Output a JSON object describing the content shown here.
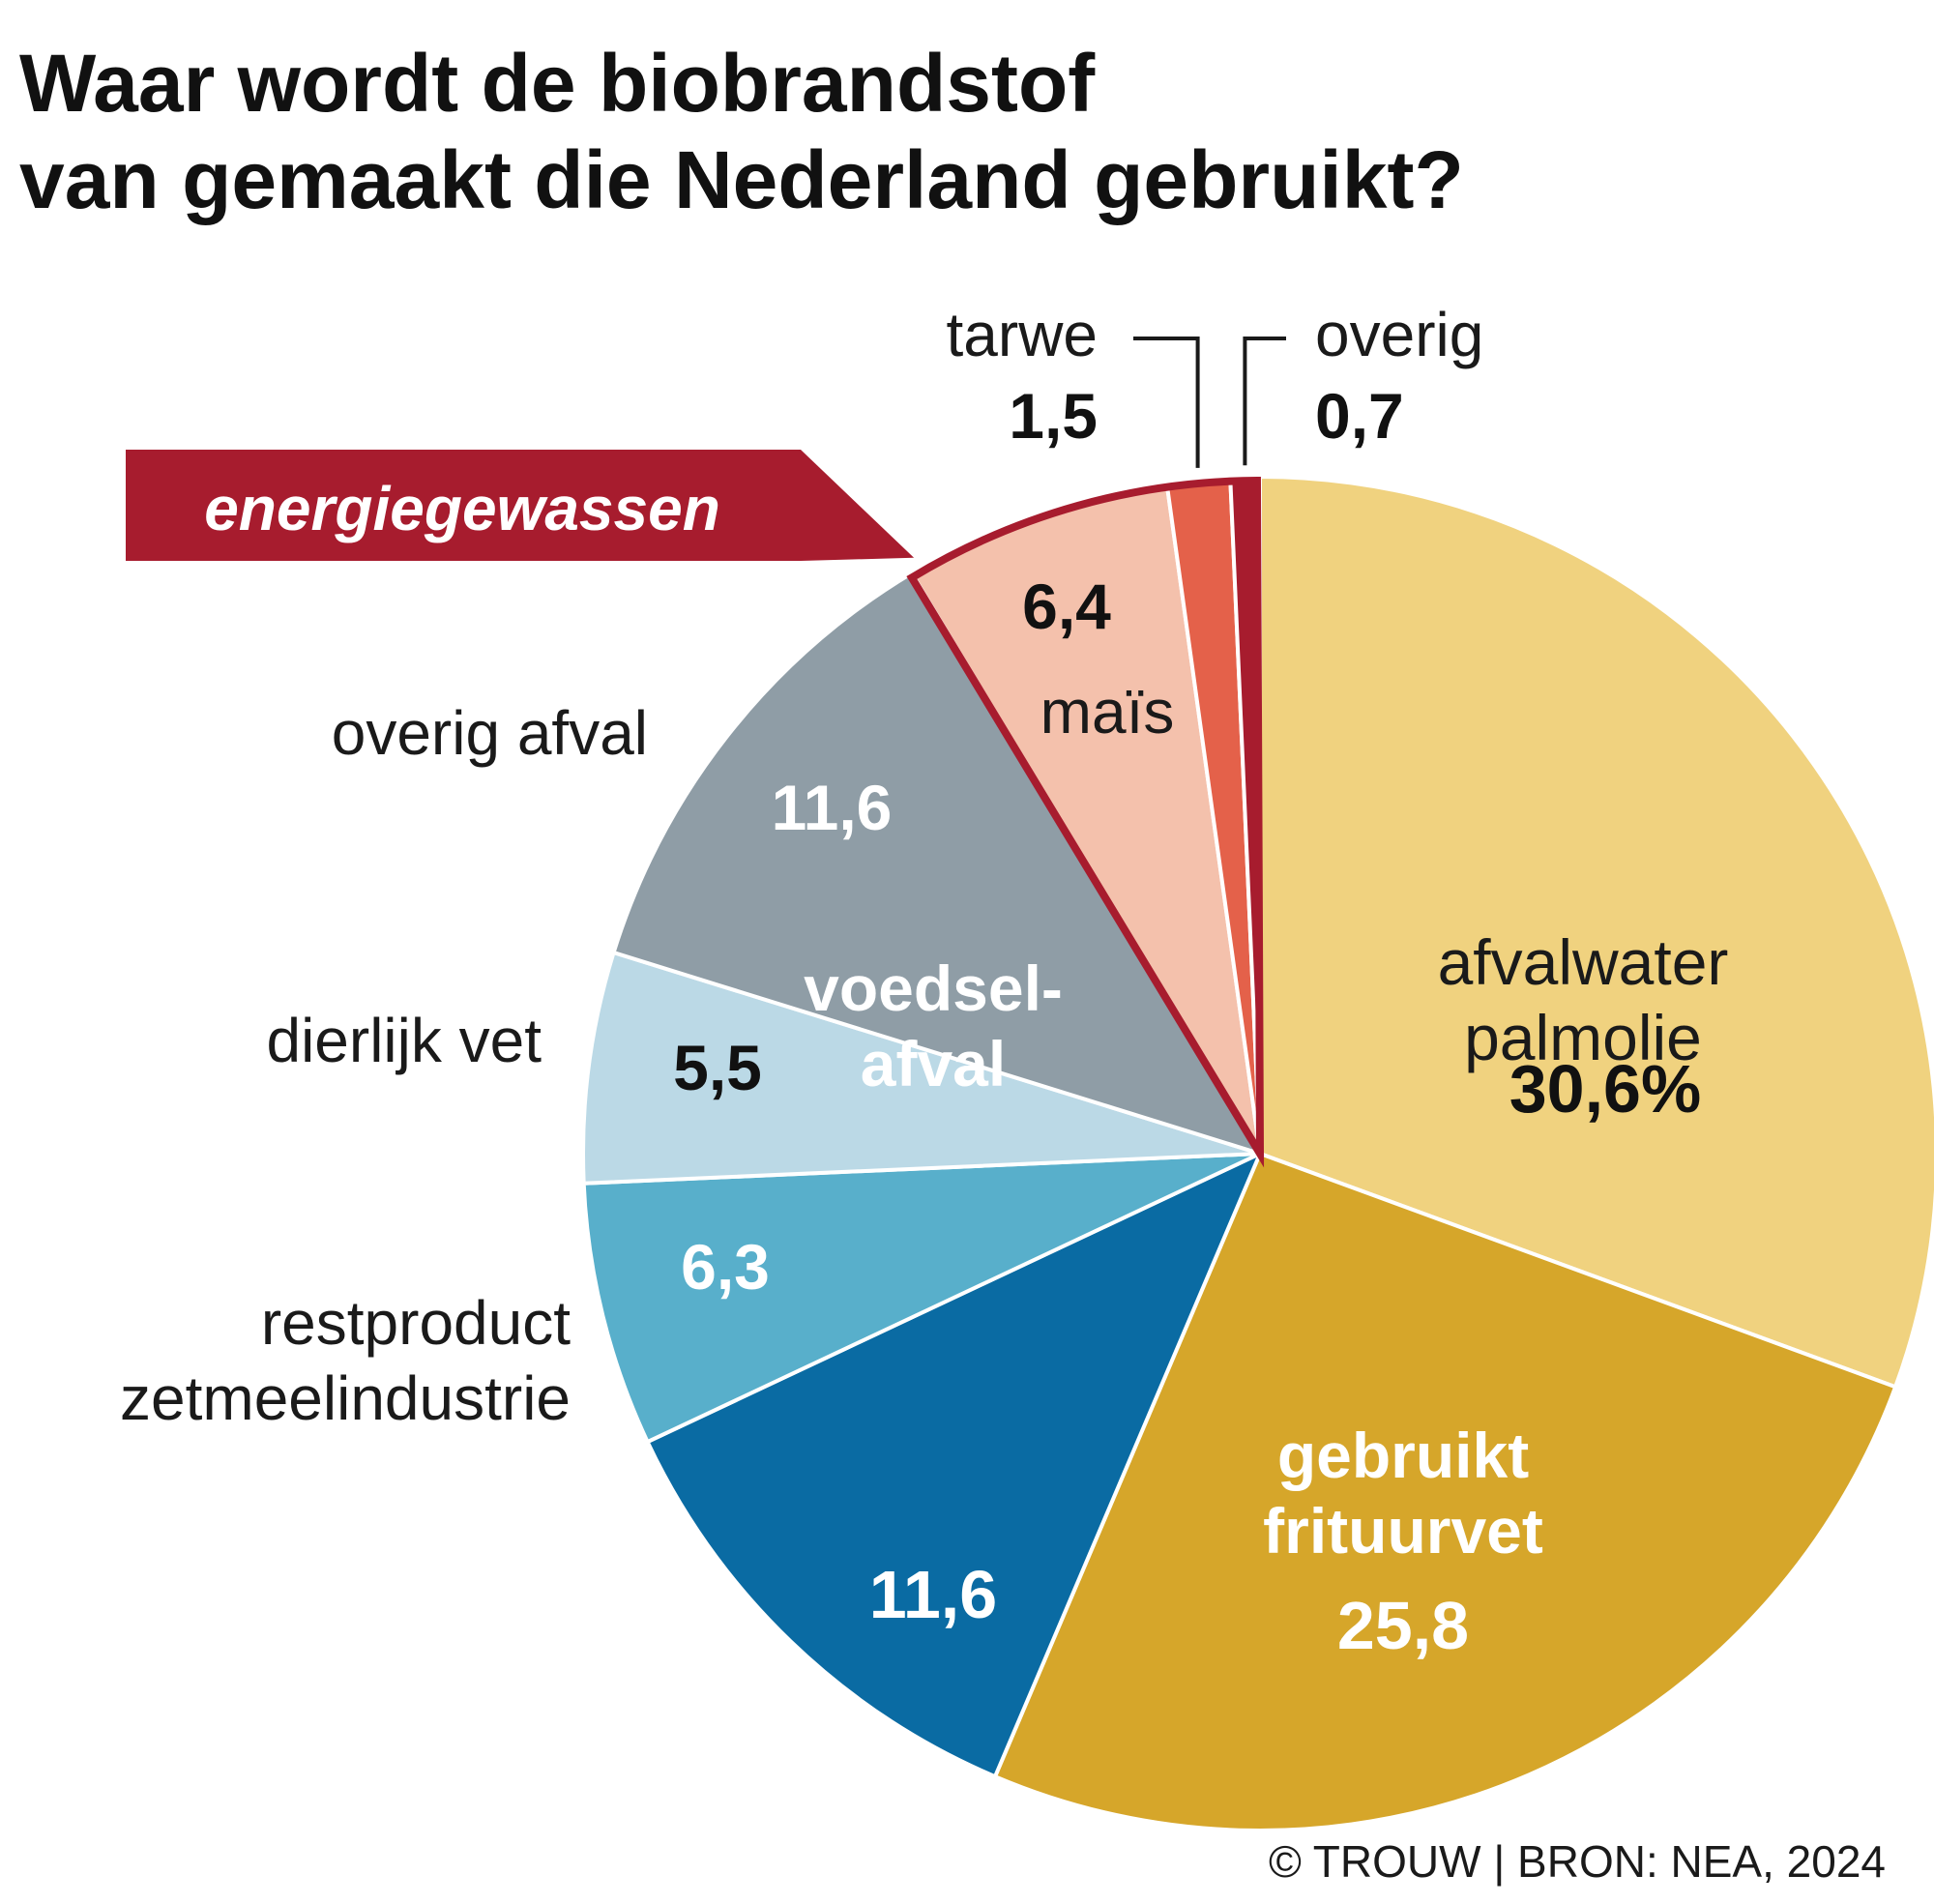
{
  "title": {
    "line1": "Waar wordt de biobrandstof",
    "line2": "van gemaakt die Nederland gebruikt?"
  },
  "credit": "© TROUW | BRON: NEA, 2024",
  "chart_data": {
    "type": "pie",
    "unit": "%",
    "slices": [
      {
        "label": "afvalwater palmolie",
        "label_lines": [
          "afvalwater",
          "palmolie"
        ],
        "value": 30.6,
        "display": "30,6%",
        "color": "#f0d27f"
      },
      {
        "label": "gebruikt frituurvet",
        "label_lines": [
          "gebruikt",
          "frituurvet"
        ],
        "value": 25.8,
        "display": "25,8",
        "color": "#d6a62a"
      },
      {
        "label": "voedsel-afval",
        "label_lines": [
          "voedsel-",
          "afval"
        ],
        "value": 11.6,
        "display": "11,6",
        "color": "#0a6ba3"
      },
      {
        "label": "restproduct zetmeelindustrie",
        "label_lines": [
          "restproduct",
          "zetmeelindustrie"
        ],
        "value": 6.3,
        "display": "6,3",
        "color": "#58afcb"
      },
      {
        "label": "dierlijk vet",
        "label_lines": [
          "dierlijk vet"
        ],
        "value": 5.5,
        "display": "5,5",
        "color": "#bbd9e6"
      },
      {
        "label": "overig afval",
        "label_lines": [
          "overig afval"
        ],
        "value": 11.6,
        "display": "11,6",
        "color": "#8f9da6"
      },
      {
        "label": "maïs",
        "label_lines": [
          "maïs"
        ],
        "value": 6.4,
        "display": "6,4",
        "color": "#f4c1ac"
      },
      {
        "label": "tarwe",
        "label_lines": [
          "tarwe"
        ],
        "value": 1.5,
        "display": "1,5",
        "color": "#e4614a"
      },
      {
        "label": "overig",
        "label_lines": [
          "overig"
        ],
        "value": 0.7,
        "display": "0,7",
        "color": "#a71c2e"
      }
    ],
    "highlight_group": {
      "label": "energiegewassen",
      "members": [
        "maïs",
        "tarwe",
        "overig"
      ],
      "color": "#a71c2e"
    }
  }
}
